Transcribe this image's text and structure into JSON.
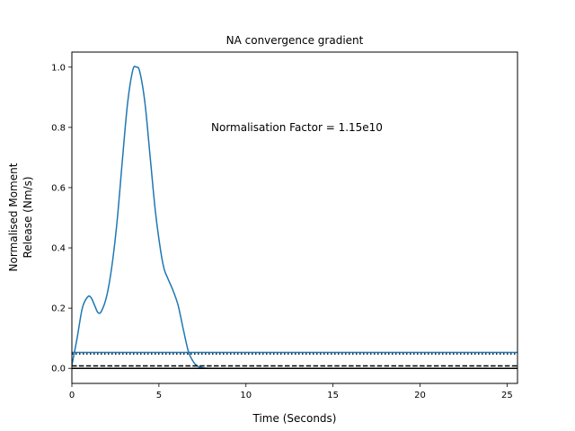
{
  "chart_data": {
    "type": "line",
    "title": "NA convergence gradient",
    "xlabel": "Time (Seconds)",
    "ylabel_lines": [
      "Normalised Moment",
      "Release (Nm/s)"
    ],
    "xlim": [
      0,
      25.6
    ],
    "ylim": [
      -0.05,
      1.05
    ],
    "xticks": [
      0,
      5,
      10,
      15,
      20,
      25
    ],
    "yticks": [
      0.0,
      0.2,
      0.4,
      0.6,
      0.8,
      1.0
    ],
    "xtick_labels": [
      "0",
      "5",
      "10",
      "15",
      "20",
      "25"
    ],
    "ytick_labels": [
      "0.0",
      "0.2",
      "0.4",
      "0.6",
      "0.8",
      "1.0"
    ],
    "annotation": {
      "text": "Normalisation Factor = 1.15e10",
      "x": 8,
      "y": 0.8
    },
    "grid": false,
    "series": [
      {
        "color": "#1f77b4",
        "style": "solid",
        "x": [
          0.0,
          0.3,
          0.6,
          0.9,
          1.1,
          1.3,
          1.5,
          1.7,
          2.0,
          2.3,
          2.6,
          2.9,
          3.2,
          3.5,
          3.7,
          3.9,
          4.2,
          4.5,
          4.8,
          5.1,
          5.3,
          5.5,
          5.8,
          6.1,
          6.4,
          6.7,
          7.0,
          7.3,
          7.6,
          8.0,
          9.0,
          12.0,
          16.0,
          20.0,
          25.6
        ],
        "y": [
          0.01,
          0.1,
          0.2,
          0.237,
          0.235,
          0.21,
          0.185,
          0.19,
          0.24,
          0.34,
          0.49,
          0.69,
          0.88,
          0.99,
          1.0,
          0.985,
          0.88,
          0.7,
          0.52,
          0.39,
          0.33,
          0.3,
          0.26,
          0.21,
          0.13,
          0.055,
          0.02,
          0.005,
          0.001,
          0.0,
          0.0,
          0.0,
          0.0,
          0.0,
          0.0
        ]
      },
      {
        "color": "#1f77b4",
        "style": "solid",
        "x": [
          0,
          25.6
        ],
        "y": [
          0.053,
          0.053
        ]
      },
      {
        "color": "#000000",
        "style": "dotted",
        "x": [
          0,
          25.6
        ],
        "y": [
          0.048,
          0.048
        ]
      },
      {
        "color": "#000000",
        "style": "dashed",
        "x": [
          0,
          25.6
        ],
        "y": [
          0.008,
          0.008
        ]
      },
      {
        "color": "#000000",
        "style": "solid",
        "x": [
          0,
          25.6
        ],
        "y": [
          0.0,
          0.0
        ]
      }
    ]
  }
}
